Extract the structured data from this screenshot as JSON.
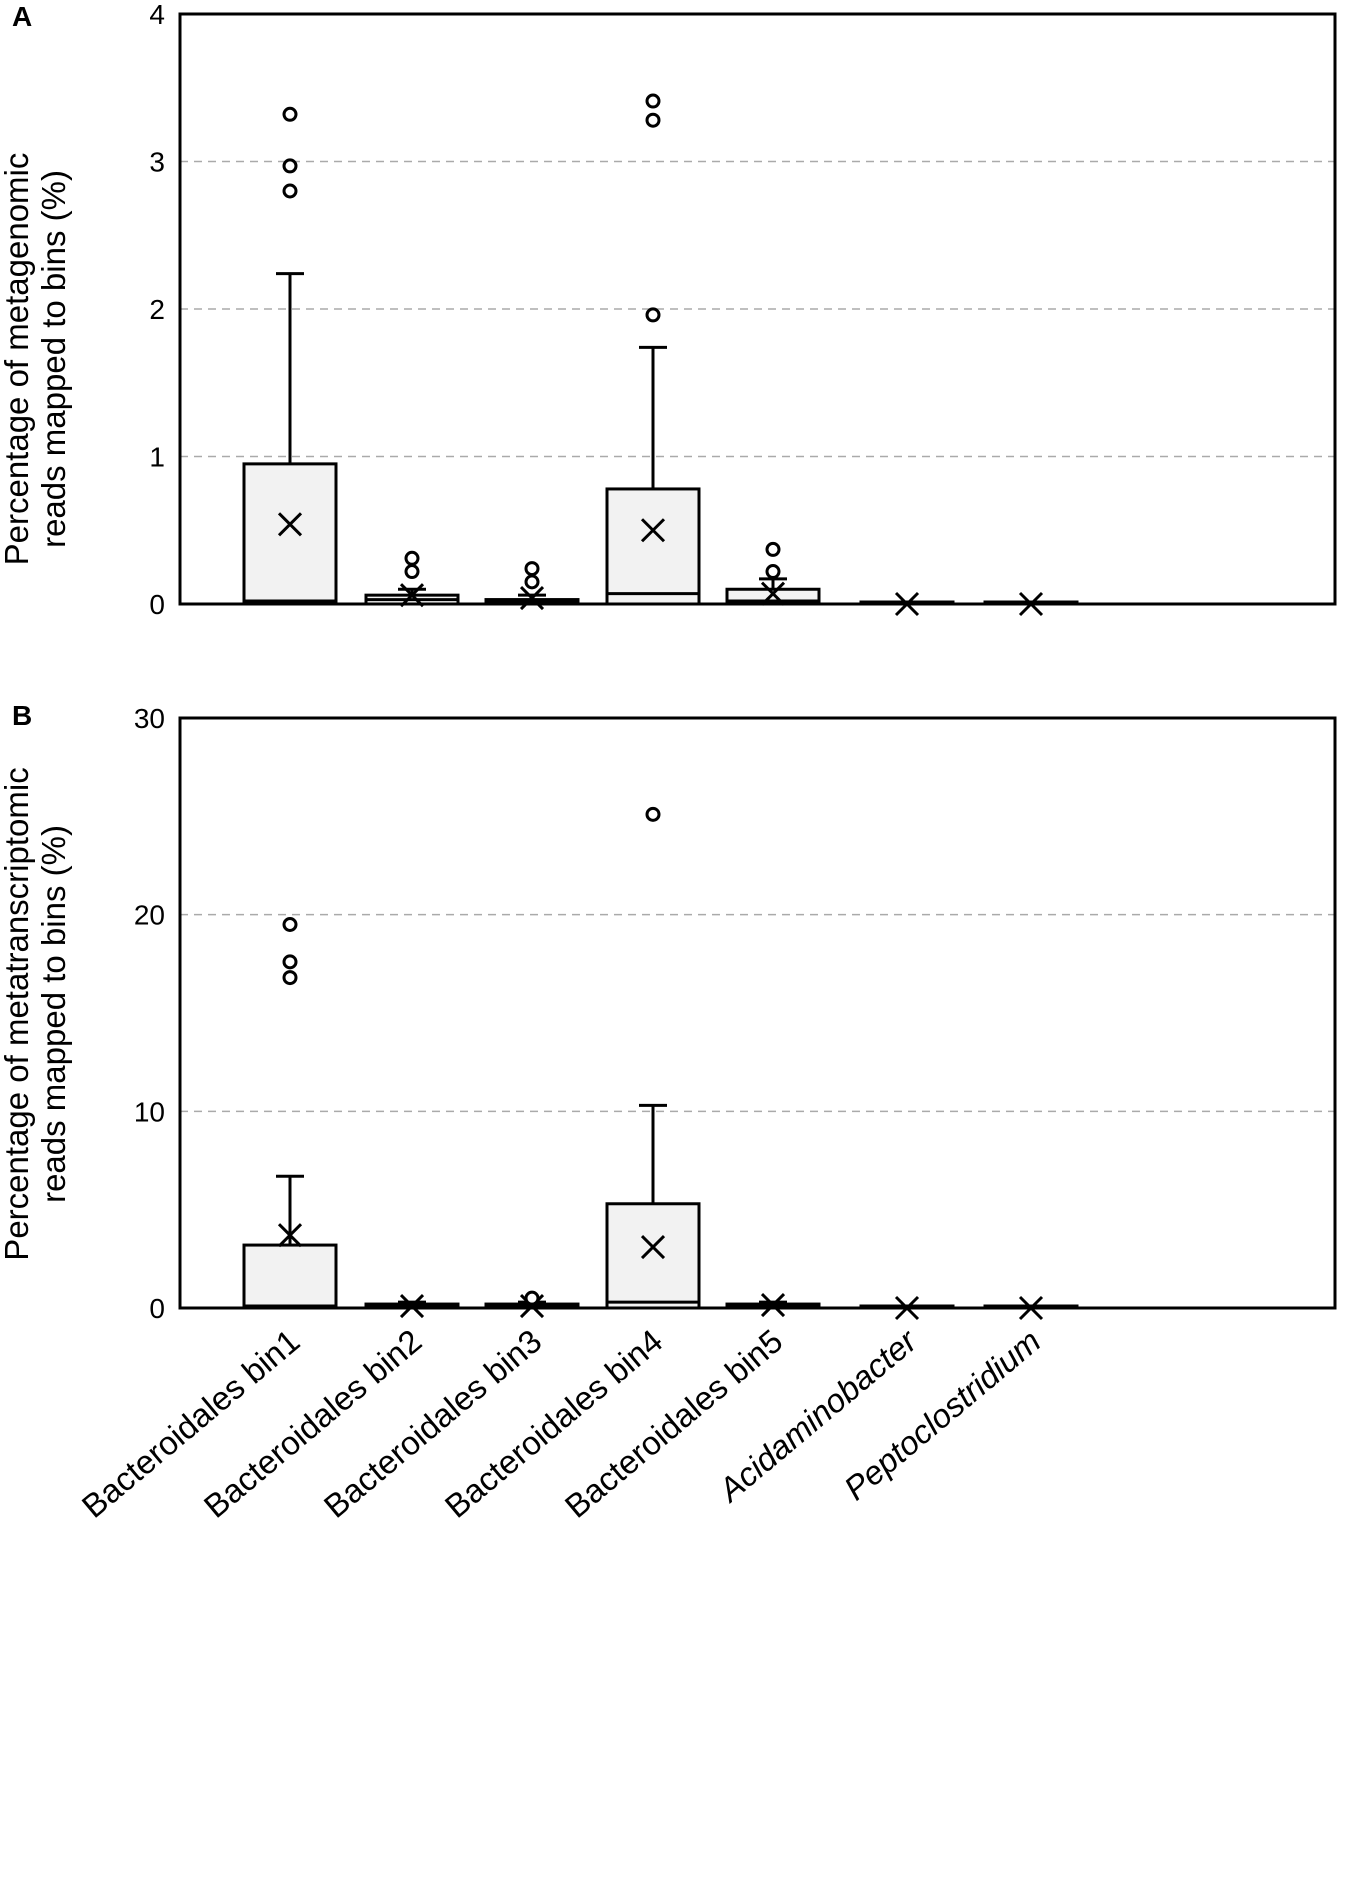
{
  "chart_data": [
    {
      "type": "box",
      "panel": "A",
      "ylabel_lines": [
        "Percentage of metagenomic",
        "reads mapped to bins (%)"
      ],
      "ylim": [
        0,
        4
      ],
      "yticks": [
        0,
        1,
        2,
        3,
        4
      ],
      "gridlines": [
        1,
        2,
        3
      ],
      "categories": [
        "Bacteroidales bin1",
        "Bacteroidales bin2",
        "Bacteroidales bin3",
        "Bacteroidales bin4",
        "Bacteroidales bin5",
        "Acidaminobacter",
        "Peptoclostridium"
      ],
      "boxes": [
        {
          "q1": 0,
          "median": 0.02,
          "q3": 0.95,
          "whisker_low": 0,
          "whisker_high": 2.24,
          "mean": 0.54,
          "outliers": [
            2.8,
            2.97,
            3.32
          ]
        },
        {
          "q1": 0,
          "median": 0.03,
          "q3": 0.06,
          "whisker_low": 0,
          "whisker_high": 0.1,
          "mean": 0.06,
          "outliers": [
            0.22,
            0.31
          ]
        },
        {
          "q1": 0,
          "median": 0.01,
          "q3": 0.03,
          "whisker_low": 0,
          "whisker_high": 0.06,
          "mean": 0.04,
          "outliers": [
            0.15,
            0.24
          ]
        },
        {
          "q1": 0,
          "median": 0.07,
          "q3": 0.78,
          "whisker_low": 0,
          "whisker_high": 1.74,
          "mean": 0.5,
          "outliers": [
            1.96,
            3.28,
            3.41
          ]
        },
        {
          "q1": 0,
          "median": 0.02,
          "q3": 0.1,
          "whisker_low": 0,
          "whisker_high": 0.17,
          "mean": 0.07,
          "outliers": [
            0.22,
            0.37
          ]
        },
        {
          "q1": 0,
          "median": 0,
          "q3": 0,
          "whisker_low": 0,
          "whisker_high": 0,
          "mean": 0,
          "outliers": []
        },
        {
          "q1": 0,
          "median": 0,
          "q3": 0,
          "whisker_low": 0,
          "whisker_high": 0,
          "mean": 0,
          "outliers": []
        }
      ]
    },
    {
      "type": "box",
      "panel": "B",
      "ylabel_lines": [
        "Percentage of metatranscriptomic",
        "reads mapped to bins (%)"
      ],
      "ylim": [
        0,
        30
      ],
      "yticks": [
        0,
        10,
        20,
        30
      ],
      "gridlines": [
        10,
        20
      ],
      "categories": [
        "Bacteroidales bin1",
        "Bacteroidales bin2",
        "Bacteroidales bin3",
        "Bacteroidales bin4",
        "Bacteroidales bin5",
        "Acidaminobacter",
        "Peptoclostridium"
      ],
      "boxes": [
        {
          "q1": 0,
          "median": 0.1,
          "q3": 3.2,
          "whisker_low": 0,
          "whisker_high": 6.7,
          "mean": 3.7,
          "outliers": [
            16.8,
            17.6,
            19.5
          ]
        },
        {
          "q1": 0,
          "median": 0.05,
          "q3": 0.2,
          "whisker_low": 0,
          "whisker_high": 0.3,
          "mean": 0.1,
          "outliers": []
        },
        {
          "q1": 0,
          "median": 0.05,
          "q3": 0.2,
          "whisker_low": 0,
          "whisker_high": 0.3,
          "mean": 0.1,
          "outliers": [
            0.5
          ]
        },
        {
          "q1": 0,
          "median": 0.3,
          "q3": 5.3,
          "whisker_low": 0,
          "whisker_high": 10.3,
          "mean": 3.1,
          "outliers": [
            25.1
          ]
        },
        {
          "q1": 0,
          "median": 0.05,
          "q3": 0.2,
          "whisker_low": 0,
          "whisker_high": 0.3,
          "mean": 0.15,
          "outliers": []
        },
        {
          "q1": 0,
          "median": 0,
          "q3": 0,
          "whisker_low": 0,
          "whisker_high": 0,
          "mean": 0,
          "outliers": []
        },
        {
          "q1": 0,
          "median": 0,
          "q3": 0,
          "whisker_low": 0,
          "whisker_high": 0,
          "mean": 0,
          "outliers": []
        }
      ]
    }
  ],
  "category_labels": [
    {
      "text": "Bacteroidales bin1",
      "italic": false
    },
    {
      "text": "Bacteroidales bin2",
      "italic": false
    },
    {
      "text": "Bacteroidales bin3",
      "italic": false
    },
    {
      "text": "Bacteroidales bin4",
      "italic": false
    },
    {
      "text": "Bacteroidales bin5",
      "italic": false
    },
    {
      "text": "Acidaminobacter",
      "italic": true
    },
    {
      "text": "Peptoclostridium",
      "italic": true
    }
  ],
  "colors": {
    "box_fill": "#f2f2f2",
    "stroke": "#000000",
    "grid": "#aaaaaa"
  }
}
